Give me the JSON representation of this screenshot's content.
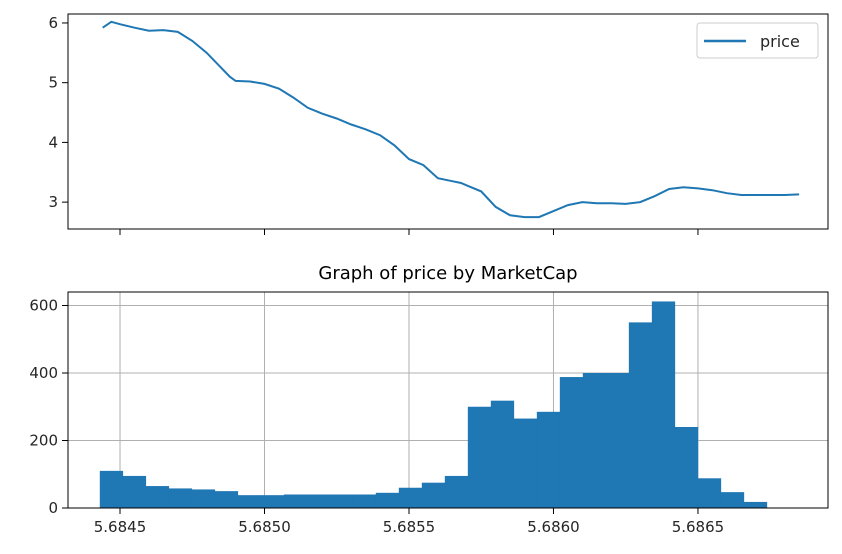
{
  "chart_data": [
    {
      "type": "line",
      "title": "",
      "xlabel": "",
      "ylabel": "",
      "xlim": [
        5.68432,
        5.68695
      ],
      "ylim": [
        2.55,
        6.15
      ],
      "yticks": [
        3,
        4,
        5,
        6
      ],
      "xticks_shown_as_marks_only": [
        5.6845,
        5.685,
        5.6855,
        5.686,
        5.6865
      ],
      "grid": false,
      "legend": {
        "position": "top-right",
        "entries": [
          "price"
        ]
      },
      "series": [
        {
          "name": "price",
          "color": "#1f77b4",
          "x": [
            5.68444,
            5.68447,
            5.6845,
            5.68455,
            5.6846,
            5.68465,
            5.6847,
            5.68475,
            5.6848,
            5.68485,
            5.68488,
            5.6849,
            5.68495,
            5.685,
            5.68505,
            5.6851,
            5.68515,
            5.6852,
            5.68525,
            5.6853,
            5.68535,
            5.6854,
            5.68545,
            5.6855,
            5.68555,
            5.6856,
            5.68565,
            5.68568,
            5.6857,
            5.68575,
            5.6858,
            5.68585,
            5.6859,
            5.68595,
            5.686,
            5.68605,
            5.6861,
            5.68615,
            5.6862,
            5.68625,
            5.6863,
            5.68635,
            5.6864,
            5.68645,
            5.6865,
            5.68655,
            5.6866,
            5.68665,
            5.6867,
            5.68675,
            5.6868,
            5.68685
          ],
          "y": [
            5.92,
            6.02,
            5.98,
            5.92,
            5.87,
            5.88,
            5.85,
            5.7,
            5.5,
            5.25,
            5.1,
            5.03,
            5.02,
            4.98,
            4.9,
            4.75,
            4.58,
            4.48,
            4.4,
            4.3,
            4.22,
            4.12,
            3.95,
            3.72,
            3.62,
            3.4,
            3.35,
            3.32,
            3.28,
            3.18,
            2.92,
            2.78,
            2.75,
            2.75,
            2.85,
            2.95,
            3.0,
            2.98,
            2.98,
            2.97,
            3.0,
            3.1,
            3.22,
            3.25,
            3.23,
            3.2,
            3.15,
            3.12,
            3.12,
            3.12,
            3.12,
            3.13
          ]
        }
      ]
    },
    {
      "type": "bar",
      "title": "Graph of price by MarketCap",
      "xlabel": "",
      "ylabel": "",
      "xlim": [
        5.68432,
        5.68695
      ],
      "ylim": [
        0,
        640
      ],
      "xticks": [
        5.6845,
        5.685,
        5.6855,
        5.686,
        5.6865
      ],
      "xtick_labels": [
        "5.6845",
        "5.6850",
        "5.6855",
        "5.6860",
        "5.6865"
      ],
      "yticks": [
        0,
        200,
        400,
        600
      ],
      "grid": true,
      "color": "#1f77b4",
      "bin_start": 5.68443,
      "bin_width": 7.96e-05,
      "values": [
        110,
        95,
        65,
        58,
        55,
        50,
        38,
        38,
        40,
        40,
        40,
        40,
        45,
        60,
        75,
        95,
        300,
        318,
        265,
        285,
        388,
        400,
        400,
        550,
        612,
        240,
        88,
        47,
        18
      ]
    }
  ]
}
